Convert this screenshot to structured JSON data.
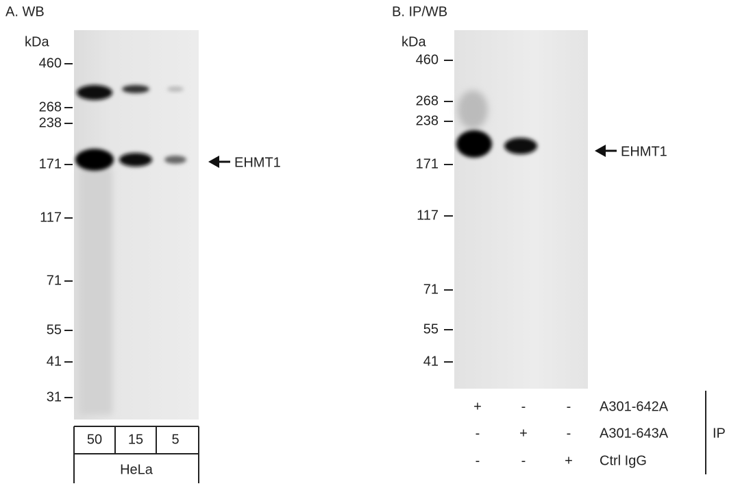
{
  "panels": [
    {
      "title": "A. WB",
      "unit": "kDa",
      "markers": [
        460,
        268,
        238,
        171,
        117,
        71,
        55,
        41,
        31
      ],
      "target": "EHMT1",
      "lanes": [
        50,
        15,
        5
      ],
      "sample": "HeLa"
    },
    {
      "title": "B. IP/WB",
      "unit": "kDa",
      "markers": [
        460,
        268,
        238,
        171,
        117,
        71,
        55,
        41
      ],
      "target": "EHMT1",
      "ip_rows": [
        {
          "label": "A301-642A",
          "marks": [
            "+",
            "-",
            "-"
          ]
        },
        {
          "label": "A301-643A",
          "marks": [
            "-",
            "+",
            "-"
          ]
        },
        {
          "label": "Ctrl IgG",
          "marks": [
            "-",
            "-",
            "+"
          ]
        }
      ],
      "ip_label": "IP"
    }
  ]
}
